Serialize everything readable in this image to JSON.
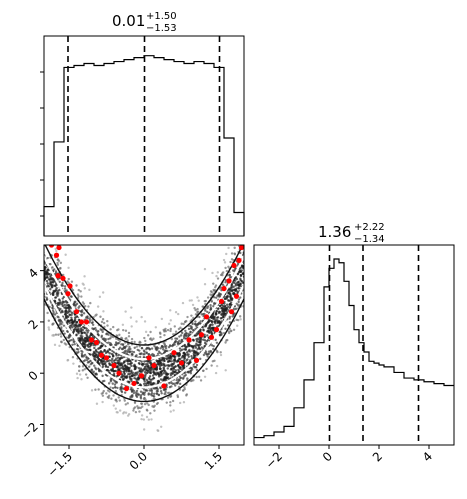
{
  "figure": {
    "panel_1d_top": {
      "title_value": "0.01",
      "title_upper": "+1.50",
      "title_lower": "−1.53"
    },
    "panel_1d_right": {
      "title_value": "1.36",
      "title_upper": "+2.22",
      "title_lower": "−1.34"
    },
    "colors": {
      "line": "#000000",
      "points": "#ff0000",
      "density_dark": "#1a1a1a",
      "contour": "#ffffff"
    }
  },
  "chart_data": [
    {
      "type": "bar",
      "title": "0.01 +1.50 −1.53",
      "xlim": [
        -2.0,
        2.0
      ],
      "x_ticks": [],
      "bin_edges": [
        -2.0,
        -1.8,
        -1.6,
        -1.4,
        -1.2,
        -1.0,
        -0.8,
        -0.6,
        -0.4,
        -0.2,
        0.0,
        0.2,
        0.4,
        0.6,
        0.8,
        1.0,
        1.2,
        1.4,
        1.6,
        1.8,
        2.0
      ],
      "values": [
        0.15,
        0.48,
        0.86,
        0.87,
        0.88,
        0.87,
        0.88,
        0.89,
        0.9,
        0.91,
        0.92,
        0.91,
        0.9,
        0.89,
        0.88,
        0.89,
        0.88,
        0.86,
        0.5,
        0.12
      ],
      "quantiles": [
        -1.52,
        0.01,
        1.51
      ]
    },
    {
      "type": "scatter",
      "xlim": [
        -2.0,
        2.0
      ],
      "ylim": [
        -2.8,
        5.0
      ],
      "x_ticks": [
        "−1.5",
        "0.0",
        "1.5"
      ],
      "x_tick_values": [
        -1.5,
        0.0,
        1.5
      ],
      "y_ticks": [
        "−2",
        "0",
        "2",
        "4"
      ],
      "y_tick_values": [
        -2,
        0,
        2,
        4
      ],
      "relation": "y ≈ x² (banana-shaped density)",
      "highlighted_points": [
        {
          "x": -1.85,
          "y": 5.0
        },
        {
          "x": -1.75,
          "y": 4.6
        },
        {
          "x": -1.7,
          "y": 4.9
        },
        {
          "x": -1.72,
          "y": 3.8
        },
        {
          "x": -1.62,
          "y": 3.7
        },
        {
          "x": -1.52,
          "y": 3.1
        },
        {
          "x": -1.48,
          "y": 3.4
        },
        {
          "x": -1.35,
          "y": 2.4
        },
        {
          "x": -1.25,
          "y": 2.0
        },
        {
          "x": -1.15,
          "y": 2.0
        },
        {
          "x": -1.05,
          "y": 1.3
        },
        {
          "x": -0.95,
          "y": 1.2
        },
        {
          "x": -0.85,
          "y": 0.7
        },
        {
          "x": -0.75,
          "y": 0.6
        },
        {
          "x": -0.6,
          "y": 0.3
        },
        {
          "x": -0.5,
          "y": 0.0
        },
        {
          "x": -0.35,
          "y": -0.6
        },
        {
          "x": -0.2,
          "y": -0.4
        },
        {
          "x": -0.05,
          "y": -0.1
        },
        {
          "x": 0.1,
          "y": 0.6
        },
        {
          "x": 0.2,
          "y": 0.3
        },
        {
          "x": 0.4,
          "y": -0.5
        },
        {
          "x": 0.6,
          "y": 0.8
        },
        {
          "x": 0.75,
          "y": 0.4
        },
        {
          "x": 0.9,
          "y": 1.3
        },
        {
          "x": 1.05,
          "y": 0.5
        },
        {
          "x": 1.15,
          "y": 1.5
        },
        {
          "x": 1.25,
          "y": 2.2
        },
        {
          "x": 1.35,
          "y": 1.4
        },
        {
          "x": 1.45,
          "y": 1.7
        },
        {
          "x": 1.55,
          "y": 2.8
        },
        {
          "x": 1.6,
          "y": 3.3
        },
        {
          "x": 1.7,
          "y": 3.6
        },
        {
          "x": 1.75,
          "y": 2.4
        },
        {
          "x": 1.8,
          "y": 4.2
        },
        {
          "x": 1.9,
          "y": 4.4
        },
        {
          "x": 1.95,
          "y": 4.9
        },
        {
          "x": 1.85,
          "y": 3.0
        }
      ]
    },
    {
      "type": "bar",
      "title": "1.36 +2.22 −1.34",
      "xlim": [
        -3.0,
        5.0
      ],
      "x_ticks": [
        "−2",
        "0",
        "2",
        "4"
      ],
      "x_tick_values": [
        -2,
        0,
        2,
        4
      ],
      "bin_edges": [
        -3.0,
        -2.6,
        -2.2,
        -1.8,
        -1.4,
        -1.0,
        -0.6,
        -0.2,
        0.0,
        0.2,
        0.4,
        0.6,
        0.8,
        1.0,
        1.2,
        1.4,
        1.6,
        1.8,
        2.0,
        2.2,
        2.6,
        3.0,
        3.4,
        3.8,
        4.2,
        4.6,
        5.0
      ],
      "values": [
        0.04,
        0.05,
        0.07,
        0.1,
        0.2,
        0.35,
        0.55,
        0.85,
        0.95,
        1.0,
        0.98,
        0.88,
        0.75,
        0.62,
        0.55,
        0.5,
        0.45,
        0.44,
        0.43,
        0.42,
        0.39,
        0.36,
        0.35,
        0.34,
        0.33,
        0.32
      ],
      "quantiles": [
        0.02,
        1.36,
        3.58
      ]
    }
  ]
}
